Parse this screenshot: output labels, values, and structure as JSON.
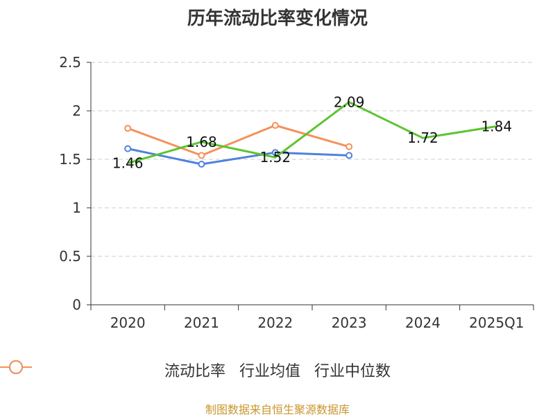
{
  "chart_data": {
    "type": "line",
    "title": "历年流动比率变化情况",
    "categories": [
      "2020",
      "2021",
      "2022",
      "2023",
      "2024",
      "2025Q1"
    ],
    "ylim": [
      0,
      2.5
    ],
    "yticks": [
      "0",
      "0.5",
      "1",
      "1.5",
      "2",
      "2.5"
    ],
    "ytick_values": [
      0,
      0.5,
      1,
      1.5,
      2,
      2.5
    ],
    "grid": true,
    "legend_position": "bottom",
    "series": [
      {
        "name": "流动比率",
        "color": "#5cc431",
        "values": [
          1.46,
          1.68,
          1.52,
          2.09,
          1.72,
          1.84
        ],
        "labels": [
          "1.46",
          "1.68",
          "1.52",
          "2.09",
          "1.72",
          "1.84"
        ]
      },
      {
        "name": "行业均值",
        "color": "#4f82dd",
        "values": [
          1.61,
          1.45,
          1.57,
          1.54,
          null,
          null
        ]
      },
      {
        "name": "行业中位数",
        "color": "#f5915a",
        "values": [
          1.82,
          1.54,
          1.85,
          1.63,
          null,
          null
        ]
      }
    ]
  },
  "source": "制图数据来自恒生聚源数据库"
}
